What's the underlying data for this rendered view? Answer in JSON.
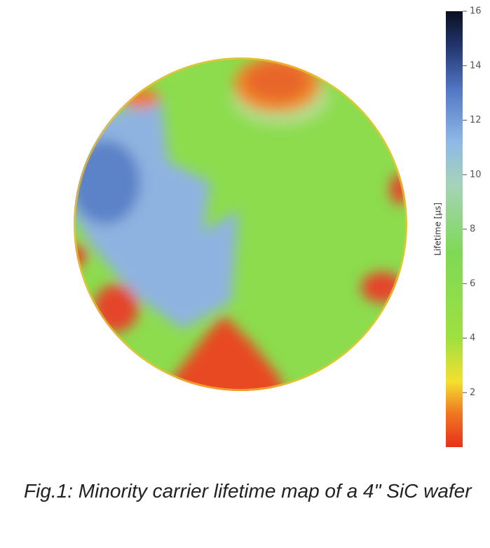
{
  "chart_data": {
    "type": "heatmap",
    "colorbar_label": "Lifetime [µs]",
    "clim": [
      0,
      16
    ],
    "cticks": [
      2,
      4,
      6,
      8,
      10,
      12,
      14,
      16
    ],
    "caption": "Fig.1: Minority carrier lifetime map of a 4\" SiC wafer"
  }
}
